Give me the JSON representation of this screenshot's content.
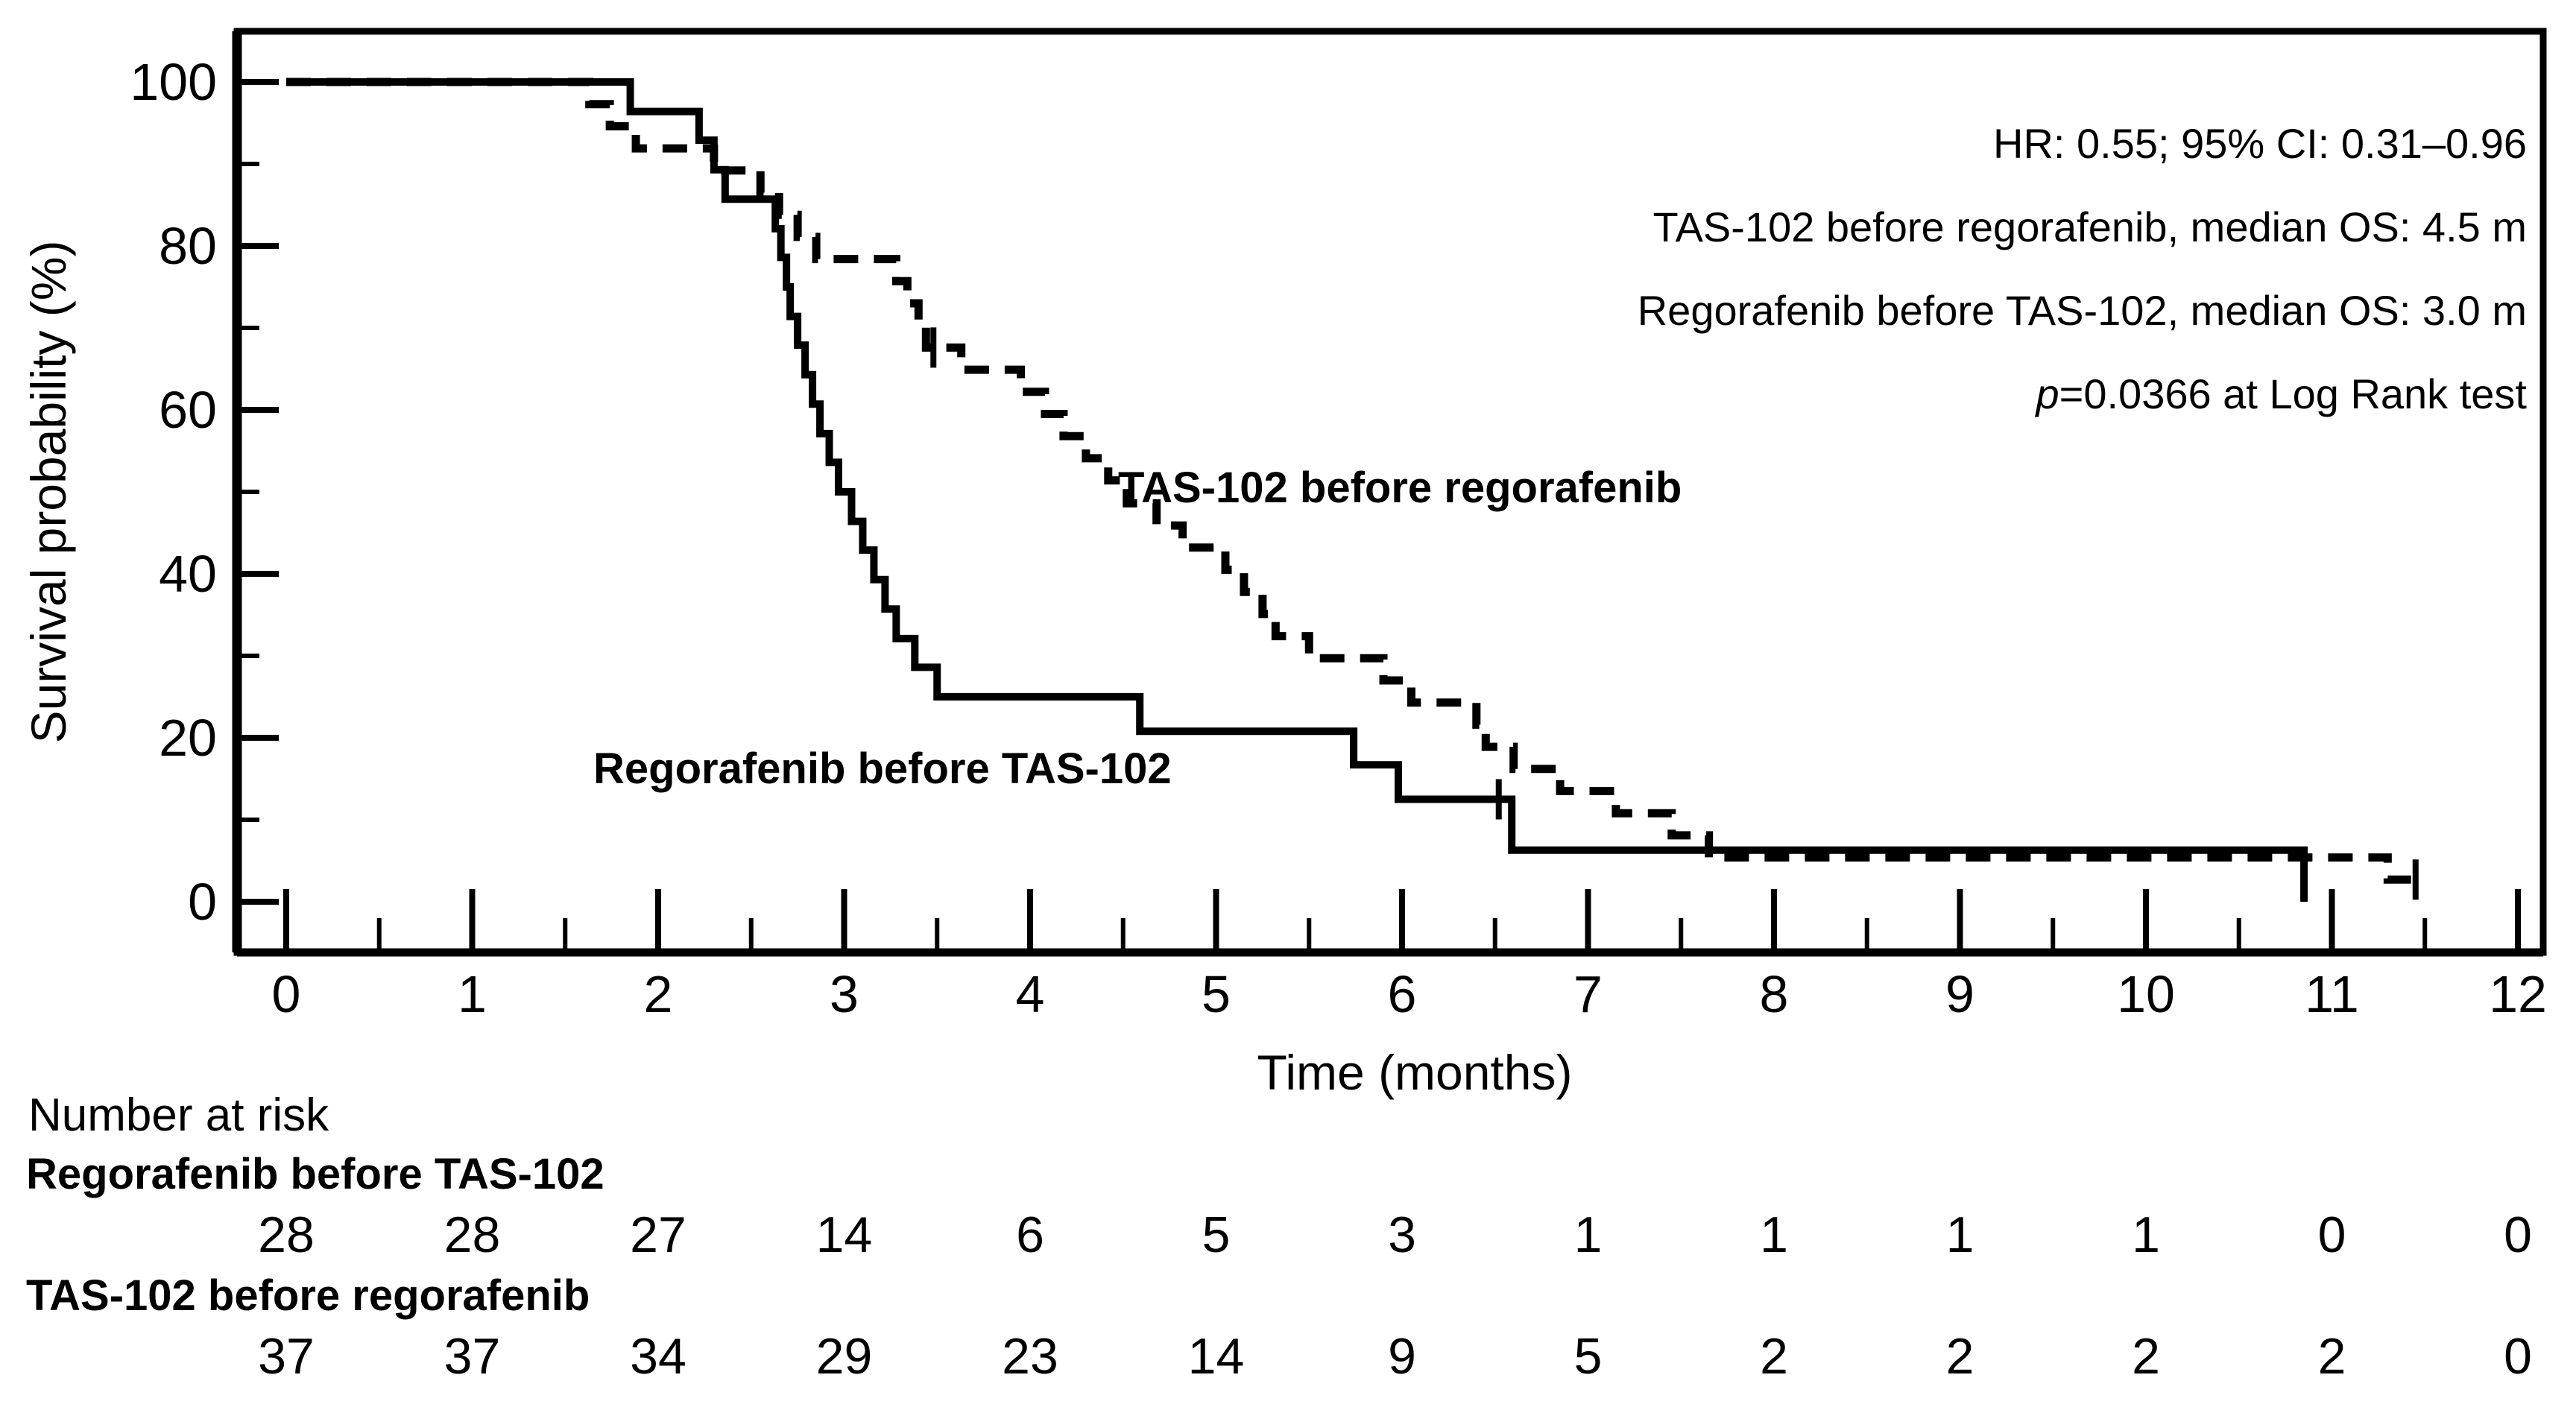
{
  "chart_data": {
    "type": "line",
    "subtype": "kaplan_meier_step",
    "title": "",
    "xlabel": "Time (months)",
    "ylabel": "Survival probability (%)",
    "xlim": [
      0,
      12
    ],
    "ylim": [
      0,
      100
    ],
    "x_ticks": [
      0,
      1,
      2,
      3,
      4,
      5,
      6,
      7,
      8,
      9,
      10,
      11,
      12
    ],
    "x_minor_ticks": [
      0.5,
      1.5,
      2.5,
      3.5,
      4.5,
      5.5,
      6.5,
      7.5,
      8.5,
      9.5,
      10.5,
      11.5
    ],
    "y_ticks": [
      0,
      20,
      40,
      60,
      80,
      100
    ],
    "y_minor_ticks": [
      10,
      30,
      50,
      70,
      90
    ],
    "grid": false,
    "legend_position": "labels-on-chart",
    "line_color": "#000000",
    "background_color": "#ffffff",
    "annotations": {
      "hr_line": "HR: 0.55; 95% CI: 0.31–0.96",
      "tas_line": "TAS-102 before regorafenib, median OS: 4.5 m",
      "rego_line": "Regorafenib before TAS-102, median OS: 3.0 m",
      "p_prefix": "p",
      "p_rest": "=0.0366 at Log Rank test"
    },
    "stats": {
      "hazard_ratio": 0.55,
      "ci_95": "0.31–0.96",
      "p_value": 0.0366,
      "test": "Log Rank"
    },
    "series": [
      {
        "name": "TAS-102 before regorafenib",
        "style": "dashed",
        "median_os_months": 4.5,
        "points": [
          [
            0,
            100
          ],
          [
            1.63,
            97.3
          ],
          [
            1.74,
            94.6
          ],
          [
            1.88,
            91.9
          ],
          [
            2.3,
            89.2
          ],
          [
            2.55,
            86.5
          ],
          [
            2.65,
            83.8
          ],
          [
            2.75,
            81.1
          ],
          [
            2.85,
            78.4
          ],
          [
            3.28,
            75.7
          ],
          [
            3.34,
            73.0
          ],
          [
            3.4,
            70.3
          ],
          [
            3.44,
            67.6
          ],
          [
            3.63,
            64.9
          ],
          [
            3.95,
            62.2
          ],
          [
            4.08,
            59.5
          ],
          [
            4.18,
            56.8
          ],
          [
            4.3,
            54.1
          ],
          [
            4.42,
            51.4
          ],
          [
            4.52,
            48.6
          ],
          [
            4.68,
            45.9
          ],
          [
            4.82,
            43.2
          ],
          [
            5.05,
            40.5
          ],
          [
            5.15,
            37.8
          ],
          [
            5.25,
            35.1
          ],
          [
            5.32,
            32.4
          ],
          [
            5.5,
            29.7
          ],
          [
            5.9,
            27.0
          ],
          [
            6.05,
            24.3
          ],
          [
            6.4,
            21.6
          ],
          [
            6.45,
            18.9
          ],
          [
            6.6,
            16.2
          ],
          [
            6.85,
            13.5
          ],
          [
            7.15,
            10.8
          ],
          [
            7.45,
            8.1
          ],
          [
            7.65,
            5.4
          ],
          [
            11.3,
            2.7
          ]
        ],
        "censor_marks": [
          [
            3.48,
            67.6
          ],
          [
            11.45,
            2.7
          ]
        ],
        "end_time": 11.5
      },
      {
        "name": "Regorafenib before TAS-102",
        "style": "solid",
        "median_os_months": 3.0,
        "points": [
          [
            0,
            100
          ],
          [
            1.85,
            96.4
          ],
          [
            2.22,
            92.9
          ],
          [
            2.3,
            89.3
          ],
          [
            2.36,
            85.7
          ],
          [
            2.63,
            82.1
          ],
          [
            2.66,
            78.6
          ],
          [
            2.69,
            75.0
          ],
          [
            2.71,
            71.4
          ],
          [
            2.75,
            67.9
          ],
          [
            2.79,
            64.3
          ],
          [
            2.83,
            60.7
          ],
          [
            2.87,
            57.1
          ],
          [
            2.92,
            53.6
          ],
          [
            2.97,
            50.0
          ],
          [
            3.04,
            46.4
          ],
          [
            3.1,
            42.9
          ],
          [
            3.16,
            39.3
          ],
          [
            3.22,
            35.7
          ],
          [
            3.28,
            32.1
          ],
          [
            3.38,
            28.6
          ],
          [
            3.5,
            25.0
          ],
          [
            4.59,
            20.8
          ],
          [
            5.74,
            16.7
          ],
          [
            5.98,
            12.5
          ],
          [
            6.59,
            6.3
          ],
          [
            10.85,
            0
          ]
        ],
        "censor_marks": [
          [
            6.52,
            12.5
          ]
        ],
        "end_time": 10.85
      }
    ],
    "number_at_risk": {
      "header": "Number at risk",
      "times": [
        0,
        1,
        2,
        3,
        4,
        5,
        6,
        7,
        8,
        9,
        10,
        11,
        12
      ],
      "rows": [
        {
          "label": "Regorafenib before TAS-102",
          "values": [
            28,
            28,
            27,
            14,
            6,
            5,
            3,
            1,
            1,
            1,
            1,
            0,
            0
          ]
        },
        {
          "label": "TAS-102 before regorafenib",
          "values": [
            37,
            37,
            34,
            29,
            23,
            14,
            9,
            5,
            2,
            2,
            2,
            2,
            0
          ]
        }
      ]
    }
  }
}
